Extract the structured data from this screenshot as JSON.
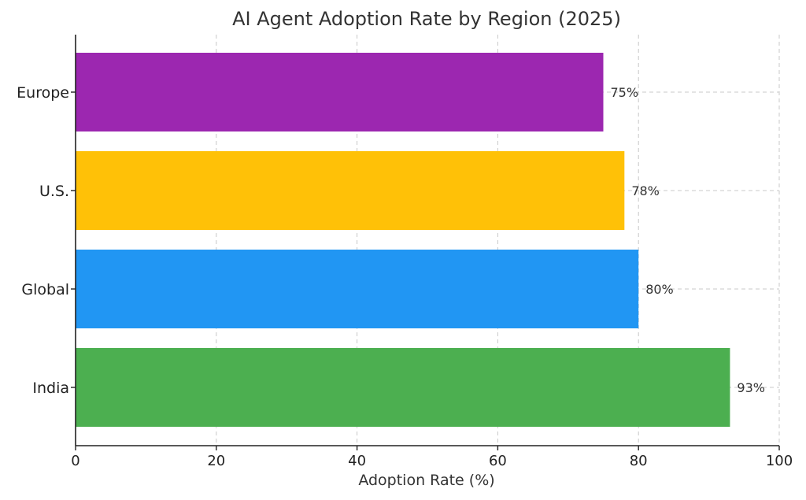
{
  "chart_data": {
    "type": "bar",
    "orientation": "horizontal",
    "title": "AI Agent Adoption Rate by Region (2025)",
    "xlabel": "Adoption Rate (%)",
    "ylabel": "",
    "xlim": [
      0,
      100
    ],
    "x_ticks": [
      0,
      20,
      40,
      60,
      80,
      100
    ],
    "grid": true,
    "categories": [
      "India",
      "Global",
      "U.S.",
      "Europe"
    ],
    "values": [
      93,
      80,
      78,
      75
    ],
    "data_labels": [
      "93%",
      "80%",
      "78%",
      "75%"
    ],
    "colors": [
      "#4caf50",
      "#2196f3",
      "#ffc107",
      "#9c27b0"
    ]
  }
}
